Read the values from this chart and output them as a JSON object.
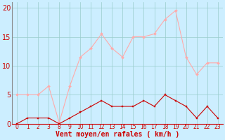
{
  "x_positions": [
    0,
    1,
    2,
    3,
    4,
    5,
    6,
    7,
    8,
    9,
    10,
    11,
    12,
    13,
    14,
    15,
    16,
    17,
    18,
    19
  ],
  "x_tick_positions": [
    0,
    1,
    2,
    3,
    4,
    5,
    6,
    7,
    8,
    9,
    10,
    11,
    12,
    13,
    14,
    15,
    16,
    17,
    18,
    19
  ],
  "x_tick_labels": [
    "0",
    "1",
    "2",
    "3",
    "8",
    "9",
    "10",
    "11",
    "12",
    "13",
    "14",
    "15",
    "16",
    "17",
    "18",
    "19",
    "20",
    "21",
    "22",
    "23"
  ],
  "wind_avg": [
    0,
    1,
    1,
    1,
    0,
    1,
    2,
    3,
    4,
    3,
    3,
    3,
    4,
    3,
    5,
    4,
    3,
    1,
    3,
    1
  ],
  "wind_gust": [
    5,
    5,
    5,
    6.5,
    0.2,
    6.5,
    11.5,
    13,
    15.5,
    13,
    11.5,
    15,
    15,
    15.5,
    18,
    19.5,
    11.5,
    8.5,
    10.5,
    10.5
  ],
  "avg_color": "#cc0000",
  "gust_color": "#ffaaaa",
  "background_color": "#cceeff",
  "grid_color": "#99cccc",
  "ylabel_values": [
    0,
    5,
    10,
    15,
    20
  ],
  "ylim": [
    0,
    21
  ],
  "xlim": [
    -0.5,
    19.5
  ],
  "xlabel": "Vent moyen/en rafales ( km/h )",
  "ytick_fontsize": 7,
  "xtick_fontsize": 5.5,
  "xlabel_fontsize": 7
}
